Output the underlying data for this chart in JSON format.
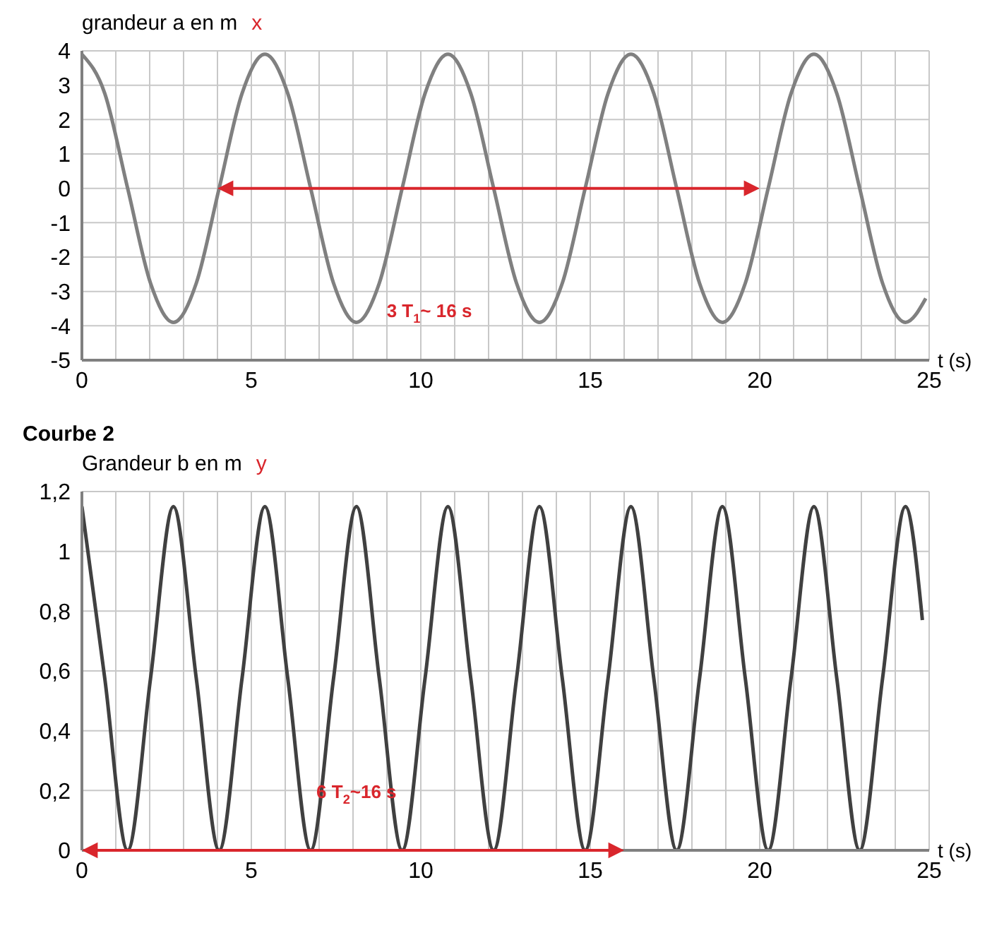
{
  "chart_data": [
    {
      "type": "line",
      "ylabel": "grandeur a en m",
      "xlabel": "t (s)",
      "annotations": [
        "x",
        "3 T$_{1}$~ 16 s"
      ],
      "x": [
        0,
        0.675,
        1.35,
        2.025,
        2.7,
        3.375,
        4.05,
        4.725,
        5.4,
        6.075,
        6.75,
        7.425,
        8.1,
        8.775,
        9.45,
        10.125,
        10.8,
        11.475,
        12.15,
        12.825,
        13.5,
        14.175,
        14.85,
        15.525,
        16.2,
        16.875,
        17.55,
        18.225,
        18.9,
        19.575,
        20.25,
        20.925,
        21.6,
        22.275,
        22.95,
        23.625,
        24.3,
        24.9
      ],
      "series": [
        {
          "color": "#808080",
          "values": [
            3.9,
            2.76,
            0,
            -2.76,
            -3.9,
            -2.76,
            0,
            2.76,
            3.9,
            2.76,
            0,
            -2.76,
            -3.9,
            -2.76,
            0,
            2.76,
            3.9,
            2.76,
            0,
            -2.76,
            -3.9,
            -2.76,
            0,
            2.76,
            3.9,
            2.76,
            0,
            -2.76,
            -3.9,
            -2.76,
            0,
            2.76,
            3.9,
            2.76,
            0,
            -2.76,
            -3.9,
            -3.2
          ]
        }
      ],
      "xlim": [
        0,
        25
      ],
      "ylim": [
        -5,
        4
      ],
      "xticks": [
        0,
        {
          "value": 1,
          "label": null
        },
        {
          "value": 2,
          "label": null
        },
        {
          "value": 3,
          "label": null
        },
        {
          "value": 4,
          "label": null
        },
        5,
        {
          "value": 6,
          "label": null
        },
        {
          "value": 7,
          "label": null
        },
        {
          "value": 8,
          "label": null
        },
        {
          "value": 9,
          "label": null
        },
        10,
        {
          "value": 11,
          "label": null
        },
        {
          "value": 12,
          "label": null
        },
        {
          "value": 13,
          "label": null
        },
        {
          "value": 14,
          "label": null
        },
        15,
        {
          "value": 16,
          "label": null
        },
        {
          "value": 17,
          "label": null
        },
        {
          "value": 18,
          "label": null
        },
        {
          "value": 19,
          "label": null
        },
        20,
        {
          "value": 21,
          "label": null
        },
        {
          "value": 22,
          "label": null
        },
        {
          "value": 23,
          "label": null
        },
        {
          "value": 24,
          "label": null
        },
        25
      ],
      "yticks": [
        -5,
        -4,
        -3,
        -2,
        -1,
        0,
        1,
        2,
        3,
        4
      ],
      "grid": true
    },
    {
      "type": "line",
      "title": "Courbe 2",
      "ylabel": "Grandeur b en m",
      "xlabel": "t (s)",
      "annotations": [
        "y",
        "6 T$_{2}$~16 s"
      ],
      "x": [
        0,
        0.675,
        1.35,
        2.025,
        2.7,
        3.375,
        4.05,
        4.725,
        5.4,
        6.075,
        6.75,
        7.425,
        8.1,
        8.775,
        9.45,
        10.125,
        10.8,
        11.475,
        12.15,
        12.825,
        13.5,
        14.175,
        14.85,
        15.525,
        16.2,
        16.875,
        17.55,
        18.225,
        18.9,
        19.575,
        20.25,
        20.925,
        21.6,
        22.275,
        22.95,
        23.625,
        24.3,
        24.8
      ],
      "series": [
        {
          "color": "#404040",
          "values": [
            1.15,
            0.575,
            0,
            0.575,
            1.15,
            0.575,
            0,
            0.575,
            1.15,
            0.575,
            0,
            0.575,
            1.15,
            0.575,
            0,
            0.575,
            1.15,
            0.575,
            0,
            0.575,
            1.15,
            0.575,
            0,
            0.575,
            1.15,
            0.575,
            0,
            0.575,
            1.15,
            0.575,
            0,
            0.575,
            1.15,
            0.575,
            0,
            0.575,
            1.15,
            0.77
          ]
        }
      ],
      "xlim": [
        0,
        25
      ],
      "ylim": [
        0,
        1.2
      ],
      "xticks": [
        0,
        {
          "value": 1,
          "label": null
        },
        {
          "value": 2,
          "label": null
        },
        {
          "value": 3,
          "label": null
        },
        {
          "value": 4,
          "label": null
        },
        5,
        {
          "value": 6,
          "label": null
        },
        {
          "value": 7,
          "label": null
        },
        {
          "value": 8,
          "label": null
        },
        {
          "value": 9,
          "label": null
        },
        10,
        {
          "value": 11,
          "label": null
        },
        {
          "value": 12,
          "label": null
        },
        {
          "value": 13,
          "label": null
        },
        {
          "value": 14,
          "label": null
        },
        15,
        {
          "value": 16,
          "label": null
        },
        {
          "value": 17,
          "label": null
        },
        {
          "value": 18,
          "label": null
        },
        {
          "value": 19,
          "label": null
        },
        20,
        {
          "value": 21,
          "label": null
        },
        {
          "value": 22,
          "label": null
        },
        {
          "value": 23,
          "label": null
        },
        {
          "value": 24,
          "label": null
        },
        25
      ],
      "yticks": [
        0,
        {
          "value": 0.2,
          "label": "0,2"
        },
        {
          "value": 0.4,
          "label": "0,4"
        },
        {
          "value": 0.6,
          "label": "0,6"
        },
        {
          "value": 0.8,
          "label": "0,8"
        },
        1,
        {
          "value": 1.2,
          "label": "1,2"
        }
      ],
      "grid": true
    }
  ]
}
